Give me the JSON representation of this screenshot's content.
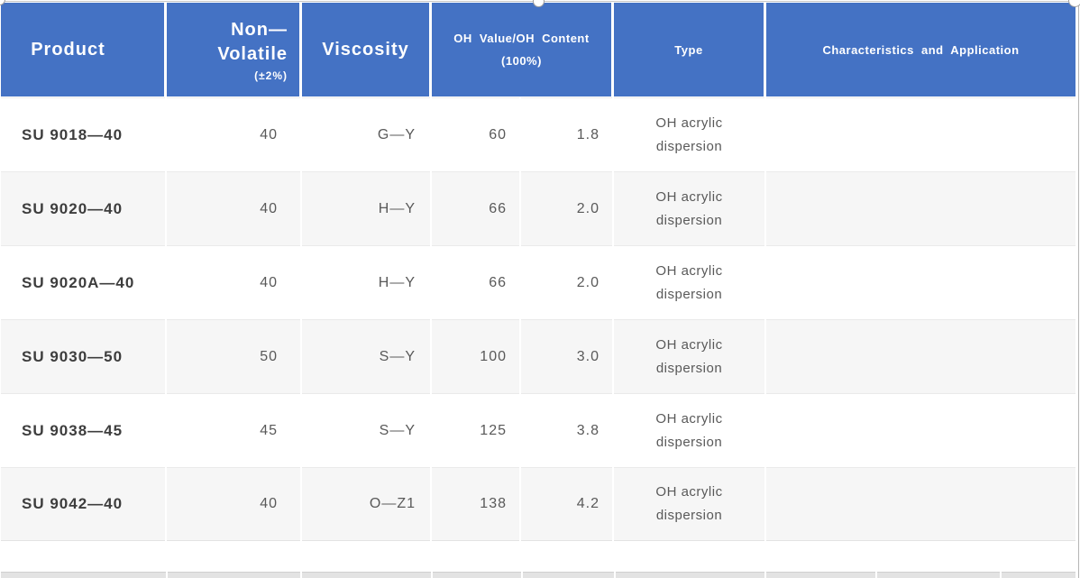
{
  "table": {
    "header": {
      "product": "Product",
      "non_volatile": [
        "Non—",
        "Volatile"
      ],
      "non_volatile_note": "(±2%)",
      "viscosity": "Viscosity",
      "oh": [
        "OH Value/OH Content",
        "(100%)"
      ],
      "type": "Type",
      "characteristics": "Characteristics and Application"
    },
    "rows": [
      {
        "product": "SU 9018—40",
        "non_volatile": "40",
        "viscosity": "G—Y",
        "oh_value": "60",
        "oh_content": "1.8",
        "type": [
          "OH acrylic",
          "dispersion"
        ],
        "characteristics": ""
      },
      {
        "product": "SU 9020—40",
        "non_volatile": "40",
        "viscosity": "H—Y",
        "oh_value": "66",
        "oh_content": "2.0",
        "type": [
          "OH acrylic",
          "dispersion"
        ],
        "characteristics": ""
      },
      {
        "product": "SU 9020A—40",
        "non_volatile": "40",
        "viscosity": "H—Y",
        "oh_value": "66",
        "oh_content": "2.0",
        "type": [
          "OH acrylic",
          "dispersion"
        ],
        "characteristics": ""
      },
      {
        "product": "SU 9030—50",
        "non_volatile": "50",
        "viscosity": "S—Y",
        "oh_value": "100",
        "oh_content": "3.0",
        "type": [
          "OH acrylic",
          "dispersion"
        ],
        "characteristics": ""
      },
      {
        "product": "SU 9038—45",
        "non_volatile": "45",
        "viscosity": "S—Y",
        "oh_value": "125",
        "oh_content": "3.8",
        "type": [
          "OH acrylic",
          "dispersion"
        ],
        "characteristics": ""
      },
      {
        "product": "SU 9042—40",
        "non_volatile": "40",
        "viscosity": "O—Z1",
        "oh_value": "138",
        "oh_content": "4.2",
        "type": [
          "OH acrylic",
          "dispersion"
        ],
        "characteristics": ""
      }
    ]
  },
  "colors": {
    "header_bg": "#4472c4",
    "header_text": "#ffffff",
    "row_alt_bg": "#f6f6f6",
    "row_text": "#595959",
    "product_text": "#3d3d3d",
    "cell_border": "#eaeaea",
    "strip_bg": "#e3e3e3",
    "edge_line": "#b5b5b5"
  }
}
